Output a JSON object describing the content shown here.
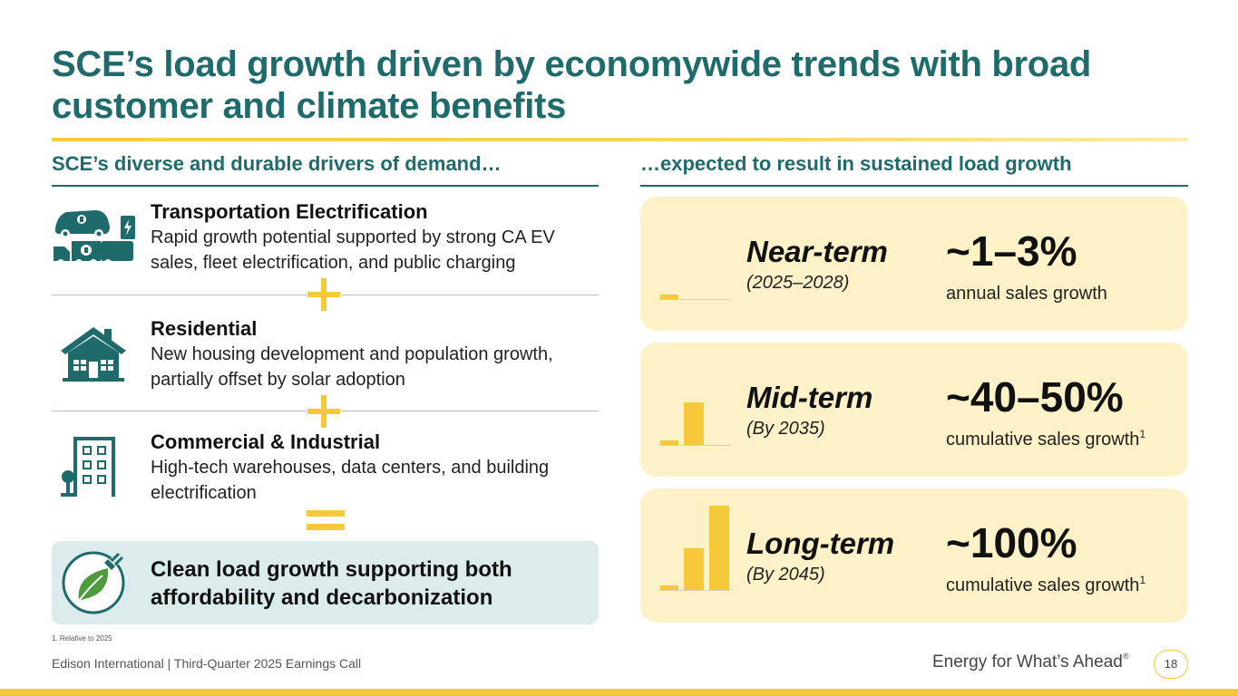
{
  "title": "SCE’s load growth driven by economywide trends with broad customer and climate benefits",
  "left_heading": "SCE’s diverse and durable drivers of demand…",
  "right_heading": "…expected to result in sustained load growth",
  "drivers": [
    {
      "title": "Transportation Electrification",
      "description": "Rapid growth potential supported by strong CA EV sales, fleet electrification, and public charging",
      "icon": "ev-icon"
    },
    {
      "title": "Residential",
      "description": "New housing development and population growth, partially offset by solar adoption",
      "icon": "house-icon"
    },
    {
      "title": "Commercial & Industrial",
      "description": "High-tech warehouses, data centers, and building electrification",
      "icon": "building-icon"
    }
  ],
  "conclusion": "Clean load growth supporting both affordability and decarbonization",
  "outlook": [
    {
      "term": "Near-term",
      "period": "(2025–2028)",
      "value": "~1–3%",
      "description": "annual sales growth",
      "footnote_ref": ""
    },
    {
      "term": "Mid-term",
      "period": "(By 2035)",
      "value": "~40–50%",
      "description": "cumulative sales growth",
      "footnote_ref": "1"
    },
    {
      "term": "Long-term",
      "period": "(By 2045)",
      "value": "~100%",
      "description": "cumulative sales growth",
      "footnote_ref": "1"
    }
  ],
  "footnote": "1.   Relative to 2025",
  "footer": "Edison International |  Third-Quarter 2025 Earnings Call",
  "tagline": "Energy for What’s Ahead",
  "tagline_mark": "®",
  "page_number": "18",
  "colors": {
    "teal": "#1f6b6b",
    "gold": "#f6c93b",
    "card_bg": "#fdf1c7",
    "box_bg": "#dcebec"
  }
}
